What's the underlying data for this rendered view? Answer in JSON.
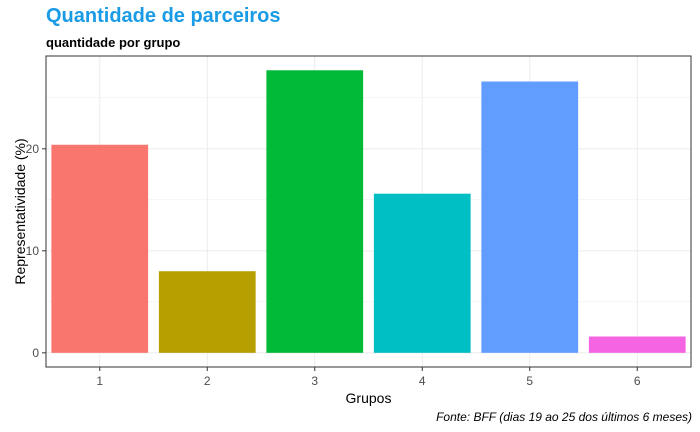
{
  "chart_data": {
    "type": "bar",
    "title": "Quantidade de parceiros",
    "subtitle": "quantidade por grupo",
    "caption": "Fonte: BFF (dias 19 ao 25 dos últimos 6 meses)",
    "xlabel": "Grupos",
    "ylabel": "Representatividade (%)",
    "categories": [
      "1",
      "2",
      "3",
      "4",
      "5",
      "6"
    ],
    "values": [
      20.4,
      8.0,
      27.7,
      15.6,
      26.6,
      1.6
    ],
    "colors": [
      "#F8766D",
      "#B79F00",
      "#00BA38",
      "#00BFC4",
      "#619CFF",
      "#F564E3"
    ],
    "yticks": [
      0,
      10,
      20
    ],
    "ylim": [
      -1.39,
      29.1
    ],
    "grid": true,
    "legend": "none"
  }
}
